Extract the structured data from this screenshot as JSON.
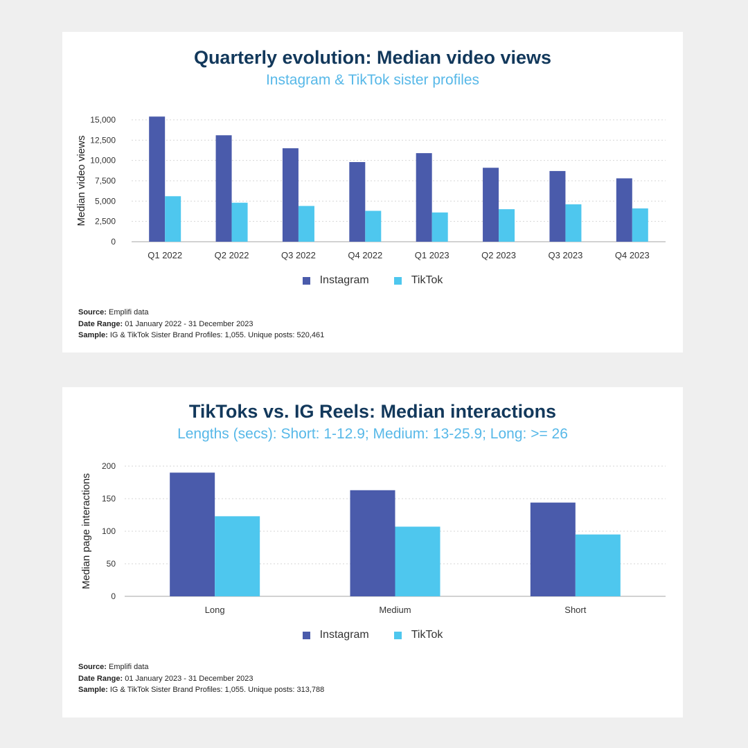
{
  "colors": {
    "instagram": "#4a5bab",
    "tiktok": "#4ec7ee",
    "title": "#12385b",
    "subtitle": "#57b8e8"
  },
  "chart_data": [
    {
      "type": "bar",
      "title": "Quarterly evolution: Median video views",
      "subtitle": "Instagram & TikTok sister profiles",
      "xlabel": "",
      "ylabel": "Median video views",
      "ylim": [
        0,
        15000
      ],
      "yticks": [
        0,
        2500,
        5000,
        7500,
        10000,
        12500,
        15000
      ],
      "ytick_labels": [
        "0",
        "2,500",
        "5,000",
        "7,500",
        "10,000",
        "12,500",
        "15,000"
      ],
      "grid": true,
      "legend_position": "bottom-center",
      "categories": [
        "Q1 2022",
        "Q2 2022",
        "Q3 2022",
        "Q4 2022",
        "Q1 2023",
        "Q2 2023",
        "Q3 2023",
        "Q4 2023"
      ],
      "series": [
        {
          "name": "Instagram",
          "values": [
            15400,
            13100,
            11500,
            9800,
            10900,
            9100,
            8700,
            7800
          ]
        },
        {
          "name": "TikTok",
          "values": [
            5600,
            4800,
            4400,
            3800,
            3600,
            4000,
            4600,
            4100
          ]
        }
      ],
      "notes": {
        "source_label": "Source:",
        "source_value": "Emplifi data",
        "range_label": "Date Range:",
        "range_value": "01 January 2022 - 31 December 2023",
        "sample_label": "Sample:",
        "sample_value": "IG & TikTok Sister Brand Profiles: 1,055. Unique posts: 520,461"
      }
    },
    {
      "type": "bar",
      "title": "TikToks vs. IG Reels: Median interactions",
      "subtitle": "Lengths (secs): Short: 1-12.9; Medium: 13-25.9; Long: >= 26",
      "xlabel": "",
      "ylabel": "Median page interactions",
      "ylim": [
        0,
        200
      ],
      "yticks": [
        0,
        50,
        100,
        150,
        200
      ],
      "ytick_labels": [
        "0",
        "50",
        "100",
        "150",
        "200"
      ],
      "grid": true,
      "legend_position": "bottom-center",
      "categories": [
        "Long",
        "Medium",
        "Short"
      ],
      "series": [
        {
          "name": "Instagram",
          "values": [
            190,
            163,
            144
          ]
        },
        {
          "name": "TikTok",
          "values": [
            123,
            107,
            95
          ]
        }
      ],
      "notes": {
        "source_label": "Source:",
        "source_value": "Emplifi data",
        "range_label": "Date Range:",
        "range_value": "01 January 2023 - 31 December 2023",
        "sample_label": "Sample:",
        "sample_value": "IG & TikTok Sister Brand Profiles: 1,055. Unique posts: 313,788"
      }
    }
  ]
}
